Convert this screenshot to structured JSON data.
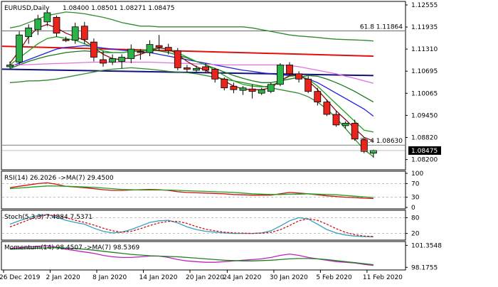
{
  "header": {
    "symbol": "EURUSD,Daily",
    "ohlc": "1.08400 1.08501 1.08271 1.08475"
  },
  "colors": {
    "bull": "#2db24a",
    "bear": "#e8241c",
    "ma_red": "#e01010",
    "ma_navy": "#12127a",
    "ma_blue": "#2020e0",
    "ma_darkgreen": "#1a7a1a",
    "ma_darkred": "#8a0f0f",
    "ma_pink": "#e070e0",
    "ma_green": "#20a020",
    "band": "#2e8b2e",
    "fib": "#555555",
    "rsi": "#d01010",
    "rsi_ma": "#20a020",
    "stoch_main": "#35a0c0",
    "stoch_signal": "#d01010",
    "mom": "#c020c0",
    "mom_ma": "#208020",
    "grid_dash": "#aaaaaa"
  },
  "chart_data": [
    {
      "type": "candlestick",
      "title": "EURUSD,Daily",
      "x_tick_labels": [
        "26 Dec 2019",
        "2 Jan 2020",
        "8 Jan 2020",
        "14 Jan 2020",
        "20 Jan 2020",
        "24 Jan 2020",
        "30 Jan 2020",
        "5 Feb 2020",
        "11 Feb 2020"
      ],
      "x_tick_index": [
        0,
        5,
        10,
        15,
        20,
        24,
        29,
        34,
        39
      ],
      "y_tick_labels": [
        "1.12555",
        "1.11935",
        "1.11310",
        "1.10695",
        "1.10065",
        "1.09450",
        "1.08820",
        "1.08200"
      ],
      "ylim": [
        1.0795,
        1.1268
      ],
      "candles": [
        {
          "o": 1.1085,
          "h": 1.11,
          "l": 1.108,
          "c": 1.109
        },
        {
          "o": 1.1098,
          "h": 1.1185,
          "l": 1.109,
          "c": 1.1175
        },
        {
          "o": 1.117,
          "h": 1.1205,
          "l": 1.115,
          "c": 1.1195
        },
        {
          "o": 1.119,
          "h": 1.1232,
          "l": 1.1175,
          "c": 1.122
        },
        {
          "o": 1.1212,
          "h": 1.1245,
          "l": 1.12,
          "c": 1.1238
        },
        {
          "o": 1.1225,
          "h": 1.123,
          "l": 1.117,
          "c": 1.118
        },
        {
          "o": 1.1162,
          "h": 1.117,
          "l": 1.1155,
          "c": 1.116
        },
        {
          "o": 1.116,
          "h": 1.121,
          "l": 1.115,
          "c": 1.1198
        },
        {
          "o": 1.12,
          "h": 1.1212,
          "l": 1.115,
          "c": 1.1162
        },
        {
          "o": 1.1155,
          "h": 1.1165,
          "l": 1.11,
          "c": 1.1112
        },
        {
          "o": 1.1105,
          "h": 1.113,
          "l": 1.1085,
          "c": 1.1095
        },
        {
          "o": 1.1098,
          "h": 1.112,
          "l": 1.109,
          "c": 1.1108
        },
        {
          "o": 1.11,
          "h": 1.112,
          "l": 1.108,
          "c": 1.1112
        },
        {
          "o": 1.1108,
          "h": 1.1148,
          "l": 1.1095,
          "c": 1.1135
        },
        {
          "o": 1.1128,
          "h": 1.1135,
          "l": 1.1105,
          "c": 1.1125
        },
        {
          "o": 1.1125,
          "h": 1.116,
          "l": 1.1115,
          "c": 1.1148
        },
        {
          "o": 1.1145,
          "h": 1.1175,
          "l": 1.113,
          "c": 1.114
        },
        {
          "o": 1.114,
          "h": 1.115,
          "l": 1.112,
          "c": 1.113
        },
        {
          "o": 1.113,
          "h": 1.1138,
          "l": 1.1075,
          "c": 1.1082
        },
        {
          "o": 1.1082,
          "h": 1.109,
          "l": 1.107,
          "c": 1.1078
        },
        {
          "o": 1.1075,
          "h": 1.1088,
          "l": 1.107,
          "c": 1.108
        },
        {
          "o": 1.1085,
          "h": 1.1095,
          "l": 1.1068,
          "c": 1.1075
        },
        {
          "o": 1.1078,
          "h": 1.1082,
          "l": 1.104,
          "c": 1.105
        },
        {
          "o": 1.105,
          "h": 1.1055,
          "l": 1.1018,
          "c": 1.1025
        },
        {
          "o": 1.103,
          "h": 1.104,
          "l": 1.101,
          "c": 1.102
        },
        {
          "o": 1.1018,
          "h": 1.103,
          "l": 1.1005,
          "c": 1.1025
        },
        {
          "o": 1.1022,
          "h": 1.1035,
          "l": 1.0995,
          "c": 1.1015
        },
        {
          "o": 1.101,
          "h": 1.1025,
          "l": 1.1005,
          "c": 1.102
        },
        {
          "o": 1.1015,
          "h": 1.104,
          "l": 1.101,
          "c": 1.1035
        },
        {
          "o": 1.1035,
          "h": 1.1095,
          "l": 1.103,
          "c": 1.109
        },
        {
          "o": 1.109,
          "h": 1.1098,
          "l": 1.106,
          "c": 1.1065
        },
        {
          "o": 1.1065,
          "h": 1.1072,
          "l": 1.104,
          "c": 1.105
        },
        {
          "o": 1.105,
          "h": 1.1058,
          "l": 1.101,
          "c": 1.1015
        },
        {
          "o": 1.1015,
          "h": 1.1025,
          "l": 1.0975,
          "c": 1.0985
        },
        {
          "o": 1.0985,
          "h": 1.0992,
          "l": 1.0945,
          "c": 1.095
        },
        {
          "o": 1.095,
          "h": 1.096,
          "l": 1.0915,
          "c": 1.092
        },
        {
          "o": 1.0918,
          "h": 1.093,
          "l": 1.091,
          "c": 1.0925
        },
        {
          "o": 1.0925,
          "h": 1.0935,
          "l": 1.0875,
          "c": 1.088
        },
        {
          "o": 1.0878,
          "h": 1.0884,
          "l": 1.084,
          "c": 1.0845
        },
        {
          "o": 1.084,
          "h": 1.085,
          "l": 1.0827,
          "c": 1.0848
        }
      ],
      "moving_averages": [
        {
          "color_key": "ma_red",
          "start": 1.1143,
          "end": 1.1115
        },
        {
          "color_key": "ma_navy",
          "start": 1.1078,
          "end": 1.106
        }
      ],
      "curves": [
        {
          "color_key": "band",
          "values": [
            1.1195,
            1.12,
            1.121,
            1.122,
            1.123,
            1.1235,
            1.124,
            1.1238,
            1.1235,
            1.123,
            1.1225,
            1.1218,
            1.121,
            1.1205,
            1.12,
            1.12,
            1.1198,
            1.1198,
            1.1198,
            1.1198,
            1.1198,
            1.1198,
            1.1198,
            1.1198,
            1.1198,
            1.1198,
            1.1195,
            1.119,
            1.1185,
            1.118,
            1.1175,
            1.1172,
            1.117,
            1.1168,
            1.1165,
            1.1163,
            1.1162,
            1.1161,
            1.116,
            1.1158
          ]
        },
        {
          "color_key": "band",
          "values": [
            1.104,
            1.1042,
            1.1045,
            1.1045,
            1.1047,
            1.105,
            1.1055,
            1.106,
            1.1065,
            1.107,
            1.1075,
            1.1078,
            1.108,
            1.1082,
            1.108,
            1.1078,
            1.1075,
            1.1072,
            1.107,
            1.1068,
            1.1065,
            1.106,
            1.1055,
            1.105,
            1.1045,
            1.104,
            1.1035,
            1.103,
            1.1025,
            1.102,
            1.1015,
            1.101,
            1.1,
            1.0985,
            1.0965,
            1.094,
            1.091,
            1.088,
            1.085,
            1.083
          ]
        },
        {
          "color_key": "ma_blue",
          "values": [
            1.1085,
            1.1095,
            1.1105,
            1.1115,
            1.1125,
            1.1135,
            1.114,
            1.1142,
            1.1145,
            1.1142,
            1.1138,
            1.1135,
            1.1132,
            1.113,
            1.1128,
            1.1125,
            1.112,
            1.1115,
            1.111,
            1.1105,
            1.11,
            1.1095,
            1.109,
            1.1085,
            1.108,
            1.1075,
            1.1072,
            1.1068,
            1.1065,
            1.1062,
            1.106,
            1.1058,
            1.105,
            1.104,
            1.1025,
            1.101,
            1.0995,
            1.098,
            1.0965,
            1.0945
          ]
        },
        {
          "color_key": "ma_darkgreen",
          "values": [
            1.108,
            1.109,
            1.11,
            1.1108,
            1.1115,
            1.112,
            1.1125,
            1.1128,
            1.113,
            1.1128,
            1.1125,
            1.1125,
            1.1125,
            1.1128,
            1.113,
            1.1132,
            1.113,
            1.1125,
            1.1118,
            1.111,
            1.11,
            1.109,
            1.108,
            1.107,
            1.106,
            1.1052,
            1.1045,
            1.104,
            1.104,
            1.1045,
            1.105,
            1.1055,
            1.106,
            1.1058,
            1.105,
            1.104,
            1.1028,
            1.1015,
            1.1,
            1.0985
          ]
        },
        {
          "color_key": "ma_pink",
          "values": [
            1.109,
            1.109,
            1.1091,
            1.1092,
            1.1093,
            1.1094,
            1.1095,
            1.1096,
            1.1097,
            1.1098,
            1.1098,
            1.1098,
            1.1098,
            1.1098,
            1.1098,
            1.1098,
            1.1097,
            1.1096,
            1.1095,
            1.1094,
            1.1093,
            1.1092,
            1.1091,
            1.109,
            1.109,
            1.109,
            1.109,
            1.109,
            1.109,
            1.109,
            1.1088,
            1.1085,
            1.108,
            1.1075,
            1.107,
            1.1065,
            1.1058,
            1.1052,
            1.1045,
            1.1038
          ]
        },
        {
          "color_key": "ma_green",
          "values": [
            1.109,
            1.111,
            1.113,
            1.115,
            1.1165,
            1.117,
            1.1165,
            1.116,
            1.115,
            1.114,
            1.113,
            1.1125,
            1.1125,
            1.1128,
            1.113,
            1.1135,
            1.1138,
            1.1135,
            1.1125,
            1.1112,
            1.11,
            1.109,
            1.1075,
            1.106,
            1.1045,
            1.1035,
            1.103,
            1.1028,
            1.103,
            1.1045,
            1.1058,
            1.106,
            1.105,
            1.103,
            1.1005,
            1.098,
            1.0955,
            1.093,
            1.0905,
            1.09
          ]
        },
        {
          "color_key": "ma_darkred",
          "values": [
            1.1095,
            1.113,
            1.117,
            1.1195,
            1.1205,
            1.1195,
            1.118,
            1.117,
            1.116,
            1.114,
            1.112,
            1.1108,
            1.1105,
            1.1112,
            1.112,
            1.113,
            1.1138,
            1.1135,
            1.112,
            1.11,
            1.1085,
            1.1075,
            1.106,
            1.1045,
            1.103,
            1.1022,
            1.102,
            1.102,
            1.1025,
            1.1045,
            1.106,
            1.1062,
            1.1045,
            1.102,
            1.099,
            1.096,
            1.0935,
            1.091,
            1.0885,
            1.0875
          ]
        }
      ],
      "fib_levels": [
        {
          "label": "61.8 1.11864",
          "value": 1.11864
        },
        {
          "label": "76.4 1.08630",
          "value": 1.0863
        }
      ],
      "current_price": "1.08475",
      "current_value": 1.08475
    },
    {
      "type": "line",
      "title": "RSI(14) 26.2026  ->MA(7) 29.4500",
      "y_tick_labels": [
        "100",
        "70",
        "30",
        "0"
      ],
      "ylim": [
        0,
        100
      ],
      "levels": [
        70,
        30
      ],
      "series": [
        {
          "color_key": "rsi",
          "values": [
            58,
            62,
            66,
            70,
            72,
            68,
            62,
            60,
            58,
            55,
            52,
            50,
            50,
            51,
            52,
            53,
            52,
            50,
            46,
            44,
            43,
            42,
            41,
            40,
            38,
            37,
            36,
            36,
            36,
            40,
            44,
            42,
            40,
            37,
            34,
            32,
            30,
            29,
            27,
            26
          ]
        },
        {
          "color_key": "rsi_ma",
          "values": [
            55,
            57,
            59,
            61,
            63,
            63,
            62,
            61,
            60,
            59,
            57,
            55,
            53,
            52,
            51,
            51,
            51,
            51,
            50,
            49,
            48,
            47,
            46,
            45,
            44,
            42,
            40,
            39,
            38,
            38,
            39,
            39,
            40,
            39,
            38,
            37,
            35,
            33,
            31,
            29
          ]
        }
      ]
    },
    {
      "type": "line",
      "title": "Stoch(5,3,3) 7.4884 7.5371",
      "y_tick_labels": [
        "80",
        "20"
      ],
      "ylim": [
        0,
        100
      ],
      "levels": [
        80,
        20
      ],
      "series": [
        {
          "color_key": "stoch_main",
          "values": [
            55,
            68,
            80,
            88,
            92,
            82,
            70,
            62,
            55,
            40,
            28,
            22,
            25,
            35,
            48,
            62,
            68,
            70,
            60,
            45,
            35,
            28,
            25,
            22,
            20,
            20,
            20,
            22,
            30,
            48,
            68,
            80,
            75,
            55,
            35,
            22,
            14,
            10,
            8,
            7
          ]
        },
        {
          "color_key": "stoch_signal",
          "values": [
            45,
            58,
            72,
            84,
            90,
            88,
            80,
            70,
            62,
            52,
            40,
            30,
            25,
            28,
            38,
            50,
            60,
            66,
            66,
            58,
            46,
            36,
            30,
            25,
            22,
            21,
            20,
            21,
            24,
            34,
            50,
            68,
            76,
            70,
            55,
            38,
            24,
            15,
            10,
            8
          ]
        }
      ]
    },
    {
      "type": "line",
      "title": "Momentum(14) 98.4507  ->MA(7) 98.5369",
      "y_tick_labels": [
        "101.3548",
        "98.1755"
      ],
      "ylim": [
        98.0,
        101.6
      ],
      "series": [
        {
          "color_key": "mom",
          "values": [
            100.9,
            101.0,
            101.1,
            101.2,
            101.3,
            101.1,
            100.8,
            100.6,
            100.4,
            100.2,
            99.9,
            99.7,
            99.6,
            99.6,
            99.7,
            99.8,
            99.8,
            99.6,
            99.3,
            99.1,
            99.0,
            98.9,
            98.9,
            99.0,
            99.1,
            99.2,
            99.3,
            99.4,
            99.6,
            99.9,
            100.1,
            99.9,
            99.6,
            99.4,
            99.2,
            99.0,
            98.9,
            98.8,
            98.6,
            98.45
          ]
        },
        {
          "color_key": "mom_ma",
          "values": [
            100.8,
            100.85,
            100.9,
            100.95,
            101.0,
            101.0,
            100.95,
            100.9,
            100.8,
            100.65,
            100.5,
            100.35,
            100.2,
            100.05,
            99.95,
            99.85,
            99.8,
            99.75,
            99.7,
            99.6,
            99.5,
            99.4,
            99.3,
            99.2,
            99.15,
            99.1,
            99.1,
            99.15,
            99.2,
            99.3,
            99.4,
            99.45,
            99.45,
            99.4,
            99.3,
            99.15,
            99.0,
            98.85,
            98.7,
            98.54
          ]
        }
      ]
    }
  ]
}
